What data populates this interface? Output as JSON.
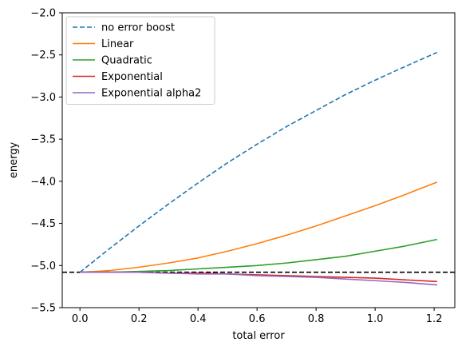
{
  "chart_data": {
    "type": "line",
    "xlabel": "total error",
    "ylabel": "energy",
    "xlim": [
      -0.06,
      1.27
    ],
    "ylim": [
      -5.5,
      -2.0
    ],
    "xticks": [
      0.0,
      0.2,
      0.4,
      0.6,
      0.8,
      1.0,
      1.2
    ],
    "xtick_labels": [
      "0.0",
      "0.2",
      "0.4",
      "0.6",
      "0.8",
      "1.0",
      "1.2"
    ],
    "yticks": [
      -5.5,
      -5.0,
      -4.5,
      -4.0,
      -3.5,
      -3.0,
      -2.5,
      -2.0
    ],
    "ytick_labels": [
      "−5.5",
      "−5.0",
      "−4.5",
      "−4.0",
      "−3.5",
      "−3.0",
      "−2.5",
      "−2.0"
    ],
    "legend_position": "upper-left",
    "reference_line": {
      "y": -5.08,
      "color": "#000000",
      "style": "dashed"
    },
    "series": [
      {
        "name": "no error boost",
        "color": "#1f77b4",
        "style": "dashed",
        "x": [
          0.0,
          0.1,
          0.2,
          0.3,
          0.4,
          0.5,
          0.6,
          0.7,
          0.8,
          0.9,
          1.0,
          1.1,
          1.21
        ],
        "y": [
          -5.08,
          -4.8,
          -4.53,
          -4.27,
          -4.02,
          -3.78,
          -3.56,
          -3.35,
          -3.16,
          -2.97,
          -2.8,
          -2.64,
          -2.47
        ]
      },
      {
        "name": "Linear",
        "color": "#ff7f0e",
        "style": "solid",
        "x": [
          0.0,
          0.1,
          0.2,
          0.3,
          0.4,
          0.5,
          0.6,
          0.7,
          0.8,
          0.9,
          1.0,
          1.1,
          1.21
        ],
        "y": [
          -5.08,
          -5.06,
          -5.02,
          -4.97,
          -4.91,
          -4.83,
          -4.74,
          -4.64,
          -4.53,
          -4.41,
          -4.29,
          -4.16,
          -4.01
        ]
      },
      {
        "name": "Quadratic",
        "color": "#2ca02c",
        "style": "solid",
        "x": [
          0.0,
          0.1,
          0.2,
          0.3,
          0.4,
          0.5,
          0.6,
          0.7,
          0.8,
          0.9,
          1.0,
          1.1,
          1.21
        ],
        "y": [
          -5.08,
          -5.08,
          -5.07,
          -5.06,
          -5.04,
          -5.02,
          -5.0,
          -4.97,
          -4.93,
          -4.89,
          -4.83,
          -4.77,
          -4.69
        ]
      },
      {
        "name": "Exponential",
        "color": "#d62728",
        "style": "solid",
        "x": [
          0.0,
          0.1,
          0.2,
          0.3,
          0.4,
          0.5,
          0.6,
          0.7,
          0.8,
          0.9,
          1.0,
          1.1,
          1.21
        ],
        "y": [
          -5.08,
          -5.08,
          -5.08,
          -5.09,
          -5.09,
          -5.1,
          -5.11,
          -5.12,
          -5.13,
          -5.14,
          -5.15,
          -5.17,
          -5.19
        ]
      },
      {
        "name": "Exponential alpha2",
        "color": "#9467bd",
        "style": "solid",
        "x": [
          0.0,
          0.1,
          0.2,
          0.3,
          0.4,
          0.5,
          0.6,
          0.7,
          0.8,
          0.9,
          1.0,
          1.1,
          1.21
        ],
        "y": [
          -5.08,
          -5.08,
          -5.08,
          -5.09,
          -5.1,
          -5.1,
          -5.12,
          -5.13,
          -5.14,
          -5.16,
          -5.18,
          -5.2,
          -5.23
        ]
      }
    ]
  }
}
